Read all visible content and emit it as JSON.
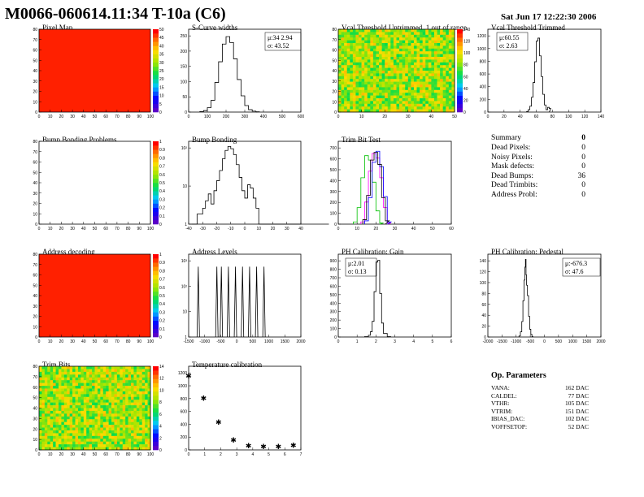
{
  "header": {
    "title": "M0066-060614.11:34 T-10a (C6)",
    "date": "Sat Jun 17 12:22:30 2006"
  },
  "panels": {
    "pixel_map": {
      "title": "Pixel Map"
    },
    "scurve": {
      "title": "S-Curve widths",
      "mu": "μ:34 2.94",
      "sigma": "σ: 43.52"
    },
    "vcal_untrimmed": {
      "title": "Vcal Threshold Untrimmed, 1 out of range"
    },
    "vcal_trimmed": {
      "title": "Vcal Threshold Trimmed",
      "mu": "μ:60.55",
      "sigma": "σ: 2.63"
    },
    "bump_problems": {
      "title": "Bump Bonding Problems"
    },
    "bump_bonding": {
      "title": "Bump Bonding"
    },
    "trim_bit_test": {
      "title": "Trim Bit Test"
    },
    "address_decoding": {
      "title": "Address decoding"
    },
    "address_levels": {
      "title": "Address Levels"
    },
    "ph_gain": {
      "title": "PH Calibration: Gain",
      "mu": "μ:2.01",
      "sigma": "σ: 0.13"
    },
    "ph_pedestal": {
      "title": "PH Calibration: Pedestal",
      "mu": "μ:-676.3",
      "sigma": "σ: 47.6"
    },
    "trim_bits": {
      "title": "Trim Bits"
    },
    "temperature": {
      "title": "Temperature calibration"
    }
  },
  "summary": {
    "title": "Summary",
    "total": "0",
    "rows": [
      {
        "label": "Dead Pixels:",
        "value": "0"
      },
      {
        "label": "Noisy Pixels:",
        "value": "0"
      },
      {
        "label": "Mask defects:",
        "value": "0"
      },
      {
        "label": "Dead Bumps:",
        "value": "36"
      },
      {
        "label": "Dead Trimbits:",
        "value": "0"
      },
      {
        "label": "Address Probl:",
        "value": "0"
      }
    ]
  },
  "op_params": {
    "title": "Op. Parameters",
    "rows": [
      {
        "label": "VANA:",
        "value": "162 DAC"
      },
      {
        "label": "CALDEL:",
        "value": "77 DAC"
      },
      {
        "label": "VTHR:",
        "value": "105 DAC"
      },
      {
        "label": "VTRIM:",
        "value": "151 DAC"
      },
      {
        "label": "IBIAS_DAC:",
        "value": "102 DAC"
      },
      {
        "label": "VOFFSETOP:",
        "value": "52 DAC"
      }
    ]
  },
  "chart_data": [
    {
      "id": "pixel_map",
      "type": "heatmap",
      "fill": "#ff2000",
      "xticks": [
        "0",
        "10",
        "20",
        "30",
        "40",
        "50",
        "60",
        "70",
        "80",
        "90",
        "100"
      ],
      "yticks": [
        "0",
        "10",
        "20",
        "30",
        "40",
        "50",
        "60",
        "70",
        "80"
      ],
      "zticks": [
        "0",
        "5",
        "10",
        "15",
        "20",
        "25",
        "30",
        "35",
        "40",
        "45",
        "50"
      ]
    },
    {
      "id": "scurve",
      "type": "line",
      "xticks": [
        "0",
        "100",
        "200",
        "300",
        "400",
        "500",
        "600"
      ],
      "yticks": [
        "0",
        "50",
        "100",
        "150",
        "200",
        "250"
      ],
      "xlim": [
        0,
        600
      ],
      "ylim": [
        0,
        280
      ],
      "x": [
        60,
        80,
        100,
        120,
        140,
        160,
        180,
        200,
        220,
        240,
        260,
        280,
        300,
        320,
        340,
        360
      ],
      "y": [
        2,
        5,
        15,
        40,
        100,
        170,
        230,
        255,
        235,
        180,
        110,
        55,
        22,
        8,
        3,
        1
      ]
    },
    {
      "id": "vcal_untrimmed",
      "type": "heatmap",
      "fill": "mixed",
      "xticks": [
        "0",
        "10",
        "20",
        "30",
        "40",
        "50"
      ],
      "yticks": [
        "0",
        "10",
        "20",
        "30",
        "40",
        "50",
        "60",
        "70",
        "80"
      ],
      "zticks": [
        "0",
        "20",
        "40",
        "60",
        "80",
        "100",
        "120",
        "140"
      ]
    },
    {
      "id": "vcal_trimmed",
      "type": "line",
      "xticks": [
        "0",
        "20",
        "40",
        "60",
        "80",
        "100",
        "120",
        "140"
      ],
      "yticks": [
        "0",
        "200",
        "400",
        "600",
        "800",
        "1000",
        "1200"
      ],
      "xlim": [
        0,
        140
      ],
      "ylim": [
        0,
        1400
      ],
      "x": [
        48,
        50,
        52,
        54,
        56,
        58,
        60,
        62,
        64,
        66,
        68,
        70,
        72,
        74,
        76
      ],
      "y": [
        10,
        40,
        100,
        250,
        500,
        850,
        1200,
        1250,
        950,
        600,
        300,
        120,
        40,
        80,
        60
      ]
    },
    {
      "id": "bump_problems",
      "type": "heatmap",
      "fill": "#ffffff",
      "xticks": [
        "0",
        "10",
        "20",
        "30",
        "40",
        "50",
        "60",
        "70",
        "80",
        "90",
        "100"
      ],
      "yticks": [
        "0",
        "10",
        "20",
        "30",
        "40",
        "50",
        "60",
        "70",
        "80"
      ],
      "zticks": [
        "0",
        "0.1",
        "0.2",
        "0.3",
        "0.4",
        "0.5",
        "0.6",
        "0.7",
        "0.8",
        "0.9",
        "1"
      ]
    },
    {
      "id": "bump_bonding",
      "type": "line",
      "log_y": true,
      "xticks": [
        "-40",
        "-30",
        "-20",
        "-10",
        "0",
        "10",
        "20",
        "30",
        "40"
      ],
      "yticks": [
        "1",
        "10",
        "10²"
      ],
      "xlim": [
        -40,
        40
      ],
      "ylim": [
        1,
        300
      ],
      "x": [
        -38,
        -34,
        -30,
        -28,
        -26,
        -24,
        -22,
        -20,
        -18,
        -16,
        -14,
        -12,
        -10,
        -8,
        -6,
        -4,
        -2,
        0,
        2,
        4,
        6,
        8,
        10,
        12,
        36
      ],
      "y": [
        1,
        2,
        3,
        5,
        8,
        4,
        10,
        20,
        40,
        90,
        160,
        210,
        180,
        120,
        60,
        25,
        10,
        6,
        15,
        12,
        6,
        3,
        1,
        1,
        1
      ]
    },
    {
      "id": "trim_bit_test",
      "type": "line",
      "xticks": [
        "0",
        "10",
        "20",
        "30",
        "40",
        "50",
        "60"
      ],
      "yticks": [
        "0",
        "100",
        "200",
        "300",
        "400",
        "500",
        "600",
        "700"
      ],
      "xlim": [
        0,
        60
      ],
      "ylim": [
        0,
        750
      ],
      "series": [
        {
          "color": "#00c000",
          "x": [
            8,
            10,
            12,
            14,
            16,
            18,
            20,
            22
          ],
          "y": [
            20,
            150,
            420,
            620,
            580,
            380,
            120,
            10
          ]
        },
        {
          "color": "#ff00ff",
          "x": [
            12,
            14,
            16,
            18,
            20,
            22,
            24,
            26
          ],
          "y": [
            20,
            200,
            480,
            640,
            600,
            420,
            150,
            10
          ]
        },
        {
          "color": "#0000ff",
          "x": [
            14,
            16,
            18,
            20,
            22,
            24,
            26
          ],
          "y": [
            30,
            240,
            560,
            660,
            520,
            250,
            20
          ]
        },
        {
          "color": "#000000",
          "x": [
            13,
            15,
            17,
            19,
            21,
            23,
            25
          ],
          "y": [
            40,
            260,
            580,
            650,
            540,
            240,
            30
          ]
        }
      ]
    },
    {
      "id": "address_decoding",
      "type": "heatmap",
      "fill": "#ff2000",
      "xticks": [
        "0",
        "10",
        "20",
        "30",
        "40",
        "50",
        "60",
        "70",
        "80",
        "90",
        "100"
      ],
      "yticks": [
        "0",
        "10",
        "20",
        "30",
        "40",
        "50",
        "60",
        "70",
        "80"
      ],
      "zticks": [
        "0",
        "0.1",
        "0.2",
        "0.3",
        "0.4",
        "0.5",
        "0.6",
        "0.7",
        "0.8",
        "0.9",
        "1"
      ]
    },
    {
      "id": "address_levels",
      "type": "line",
      "log_y": true,
      "xticks": [
        "-1500",
        "-1000",
        "-500",
        "0",
        "500",
        "1000",
        "1500",
        "2000"
      ],
      "yticks": [
        "1",
        "10",
        "10²",
        "10³"
      ],
      "xlim": [
        -1500,
        2000
      ],
      "ylim": [
        1,
        3000
      ],
      "x": [
        -1200,
        -620,
        -480,
        -260,
        -40,
        180,
        400,
        620,
        850
      ],
      "y": [
        900,
        900,
        900,
        900,
        900,
        900,
        900,
        900,
        900
      ]
    },
    {
      "id": "ph_gain",
      "type": "line",
      "xticks": [
        "0",
        "1",
        "2",
        "3",
        "4",
        "5",
        "6"
      ],
      "yticks": [
        "0",
        "100",
        "200",
        "300",
        "400",
        "500",
        "600",
        "700",
        "800",
        "900"
      ],
      "xlim": [
        0,
        6
      ],
      "ylim": [
        0,
        950
      ],
      "x": [
        1.4,
        1.6,
        1.7,
        1.8,
        1.9,
        2.0,
        2.1,
        2.2,
        2.3,
        2.4,
        2.6
      ],
      "y": [
        5,
        20,
        60,
        180,
        520,
        860,
        880,
        500,
        160,
        40,
        5
      ]
    },
    {
      "id": "ph_pedestal",
      "type": "line",
      "xticks": [
        "-2000",
        "-1500",
        "-1000",
        "-500",
        "0",
        "500",
        "1000",
        "1500",
        "2000"
      ],
      "yticks": [
        "0",
        "20",
        "40",
        "60",
        "80",
        "100",
        "120",
        "140"
      ],
      "xlim": [
        -2000,
        2000
      ],
      "ylim": [
        0,
        160
      ],
      "x": [
        -900,
        -850,
        -800,
        -760,
        -720,
        -690,
        -670,
        -650,
        -630,
        -600,
        -560,
        -520,
        -480,
        -440
      ],
      "y": [
        2,
        10,
        30,
        70,
        110,
        135,
        150,
        120,
        100,
        80,
        40,
        15,
        5,
        1
      ]
    },
    {
      "id": "trim_bits",
      "type": "heatmap",
      "fill": "mixed",
      "xticks": [
        "0",
        "10",
        "20",
        "30",
        "40",
        "50",
        "60",
        "70",
        "80",
        "90",
        "100"
      ],
      "yticks": [
        "0",
        "10",
        "20",
        "30",
        "40",
        "50",
        "60",
        "70",
        "80"
      ],
      "zticks": [
        "0",
        "2",
        "4",
        "6",
        "8",
        "10",
        "12",
        "14"
      ]
    },
    {
      "id": "temperature",
      "type": "scatter",
      "xticks": [
        "0",
        "1",
        "2",
        "3",
        "4",
        "5",
        "6",
        "7"
      ],
      "yticks": [
        "0",
        "200",
        "400",
        "600",
        "800",
        "1000",
        "1200"
      ],
      "xlim": [
        0,
        7.5
      ],
      "ylim": [
        0,
        1300
      ],
      "x": [
        0,
        1,
        2,
        3,
        4,
        5,
        6,
        7
      ],
      "y": [
        1150,
        800,
        430,
        150,
        60,
        50,
        50,
        70
      ]
    }
  ]
}
